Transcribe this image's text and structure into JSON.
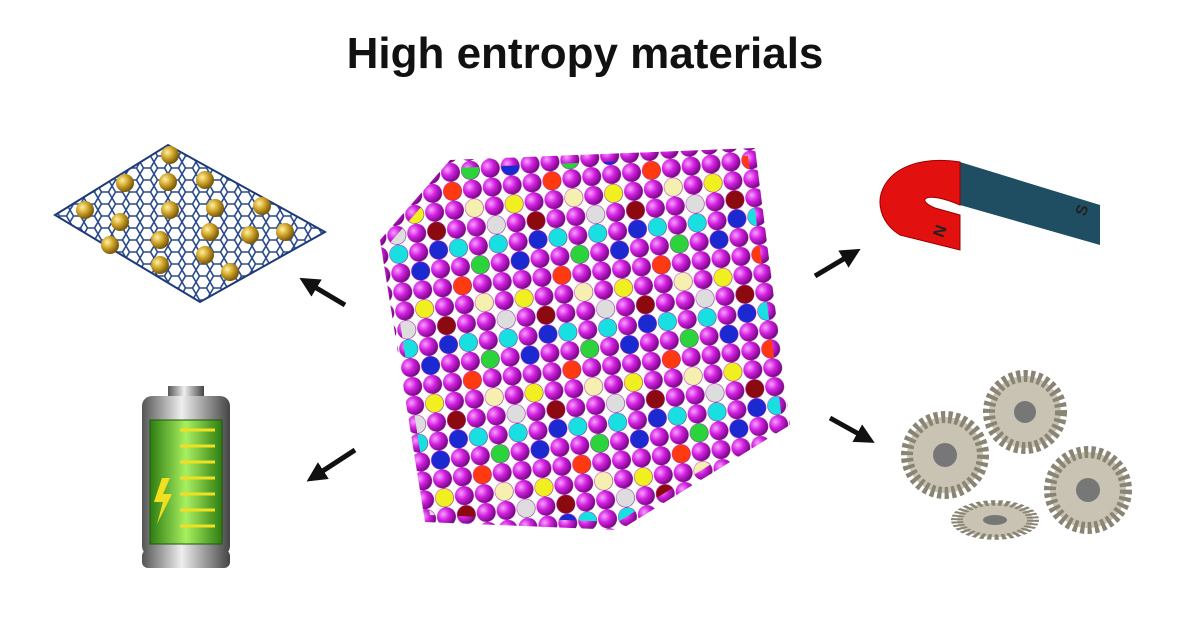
{
  "header": {
    "title": "High entropy materials"
  },
  "magnet": {
    "north": "N",
    "south": "S"
  }
}
